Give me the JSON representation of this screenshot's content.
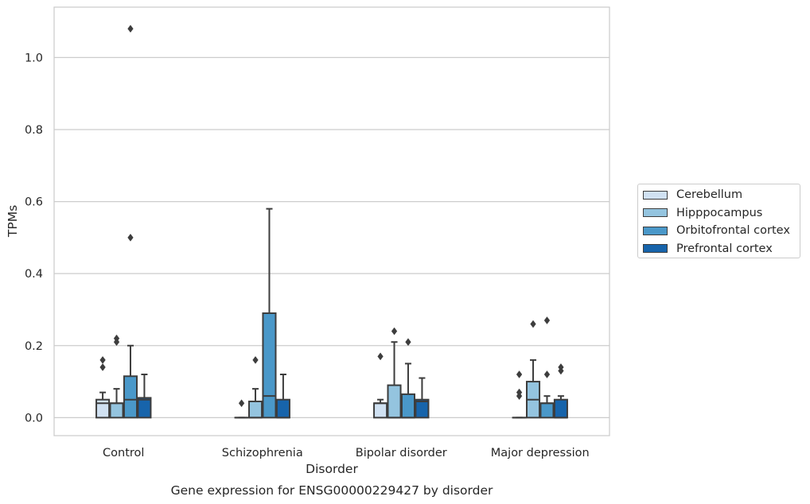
{
  "chart_data": {
    "type": "box",
    "title": "",
    "caption": "Gene expression for ENSG00000229427 by disorder",
    "xlabel": "Disorder",
    "ylabel": "TPMs",
    "ylim": [
      -0.05,
      1.14
    ],
    "yticks": [
      0.0,
      0.2,
      0.4,
      0.6,
      0.8,
      1.0
    ],
    "ytick_labels": [
      "0.0",
      "0.2",
      "0.4",
      "0.6",
      "0.8",
      "1.0"
    ],
    "grid": "horizontal",
    "legend_position": "right",
    "categories": [
      "Control",
      "Schizophrenia",
      "Bipolar disorder",
      "Major depression"
    ],
    "series": [
      {
        "name": "Cerebellum",
        "color": "#d0e1f2",
        "boxes": [
          {
            "whisker_low": 0.0,
            "q1": 0.0,
            "median": 0.04,
            "q3": 0.05,
            "whisker_high": 0.07,
            "outliers": [
              0.14,
              0.16
            ]
          },
          {
            "whisker_low": 0.0,
            "q1": 0.0,
            "median": 0.0,
            "q3": 0.0,
            "whisker_high": 0.0,
            "outliers": [
              0.04
            ]
          },
          {
            "whisker_low": 0.0,
            "q1": 0.0,
            "median": 0.04,
            "q3": 0.04,
            "whisker_high": 0.05,
            "outliers": [
              0.17
            ]
          },
          {
            "whisker_low": 0.0,
            "q1": 0.0,
            "median": 0.0,
            "q3": 0.0,
            "whisker_high": 0.0,
            "outliers": [
              0.06,
              0.07,
              0.12
            ]
          }
        ]
      },
      {
        "name": "Hipppocampus",
        "color": "#94c4df",
        "boxes": [
          {
            "whisker_low": 0.0,
            "q1": 0.0,
            "median": 0.04,
            "q3": 0.04,
            "whisker_high": 0.08,
            "outliers": [
              0.21,
              0.22
            ]
          },
          {
            "whisker_low": 0.0,
            "q1": 0.0,
            "median": 0.0,
            "q3": 0.045,
            "whisker_high": 0.08,
            "outliers": [
              0.16
            ]
          },
          {
            "whisker_low": 0.0,
            "q1": 0.0,
            "median": 0.0,
            "q3": 0.09,
            "whisker_high": 0.21,
            "outliers": [
              0.24
            ]
          },
          {
            "whisker_low": 0.0,
            "q1": 0.0,
            "median": 0.05,
            "q3": 0.1,
            "whisker_high": 0.16,
            "outliers": [
              0.26
            ]
          }
        ]
      },
      {
        "name": "Orbitofrontal cortex",
        "color": "#4a98c9",
        "boxes": [
          {
            "whisker_low": 0.0,
            "q1": 0.0,
            "median": 0.05,
            "q3": 0.115,
            "whisker_high": 0.2,
            "outliers": [
              0.5,
              1.08
            ]
          },
          {
            "whisker_low": 0.0,
            "q1": 0.0,
            "median": 0.06,
            "q3": 0.29,
            "whisker_high": 0.58,
            "outliers": []
          },
          {
            "whisker_low": 0.0,
            "q1": 0.0,
            "median": 0.0,
            "q3": 0.065,
            "whisker_high": 0.15,
            "outliers": [
              0.21
            ]
          },
          {
            "whisker_low": 0.0,
            "q1": 0.0,
            "median": 0.04,
            "q3": 0.04,
            "whisker_high": 0.06,
            "outliers": [
              0.12,
              0.27
            ]
          }
        ]
      },
      {
        "name": "Prefrontal cortex",
        "color": "#1764ab",
        "boxes": [
          {
            "whisker_low": 0.0,
            "q1": 0.0,
            "median": 0.05,
            "q3": 0.055,
            "whisker_high": 0.12,
            "outliers": []
          },
          {
            "whisker_low": 0.0,
            "q1": 0.0,
            "median": 0.0,
            "q3": 0.05,
            "whisker_high": 0.12,
            "outliers": []
          },
          {
            "whisker_low": 0.0,
            "q1": 0.0,
            "median": 0.045,
            "q3": 0.05,
            "whisker_high": 0.11,
            "outliers": []
          },
          {
            "whisker_low": 0.0,
            "q1": 0.0,
            "median": 0.0,
            "q3": 0.05,
            "whisker_high": 0.06,
            "outliers": [
              0.13,
              0.14
            ]
          }
        ]
      }
    ]
  }
}
